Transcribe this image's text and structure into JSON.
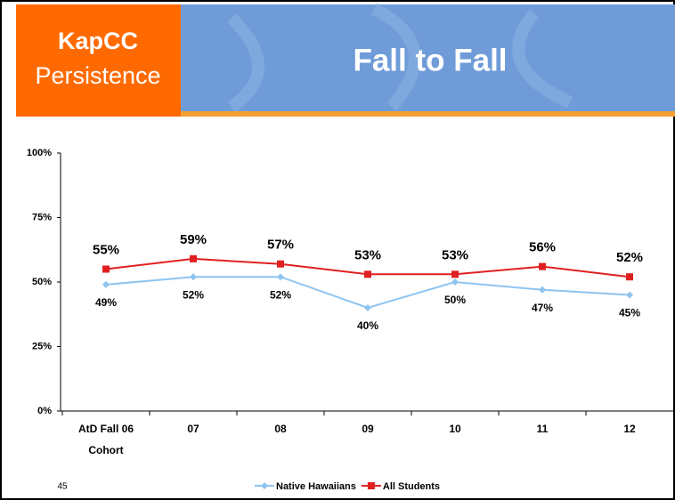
{
  "header": {
    "brand": "KapCC",
    "subtitle": "Persistence",
    "title": "Fall to Fall"
  },
  "slide_number": 45,
  "chart_data": {
    "type": "line",
    "categories": [
      "AtD Fall 06 Cohort",
      "07",
      "08",
      "09",
      "10",
      "11",
      "12"
    ],
    "series": [
      {
        "name": "Native Hawaiians",
        "color": "#8ec4f0",
        "marker": "diamond",
        "values": [
          49,
          52,
          52,
          40,
          50,
          47,
          45
        ],
        "value_labels": [
          "49%",
          "52%",
          "52%",
          "40%",
          "50%",
          "47%",
          "45%"
        ]
      },
      {
        "name": "All Students",
        "color": "#e02020",
        "marker": "square",
        "values": [
          55,
          59,
          57,
          53,
          53,
          56,
          52
        ],
        "value_labels": [
          "55%",
          "59%",
          "57%",
          "53%",
          "53%",
          "56%",
          "52%"
        ]
      }
    ],
    "ylim": [
      0,
      100
    ],
    "yticks": [
      {
        "value": 0,
        "label": "0%"
      },
      {
        "value": 25,
        "label": "25%"
      },
      {
        "value": 50,
        "label": "50%"
      },
      {
        "value": 75,
        "label": "75%"
      },
      {
        "value": 100,
        "label": "100%"
      }
    ],
    "legend": "bottom"
  }
}
